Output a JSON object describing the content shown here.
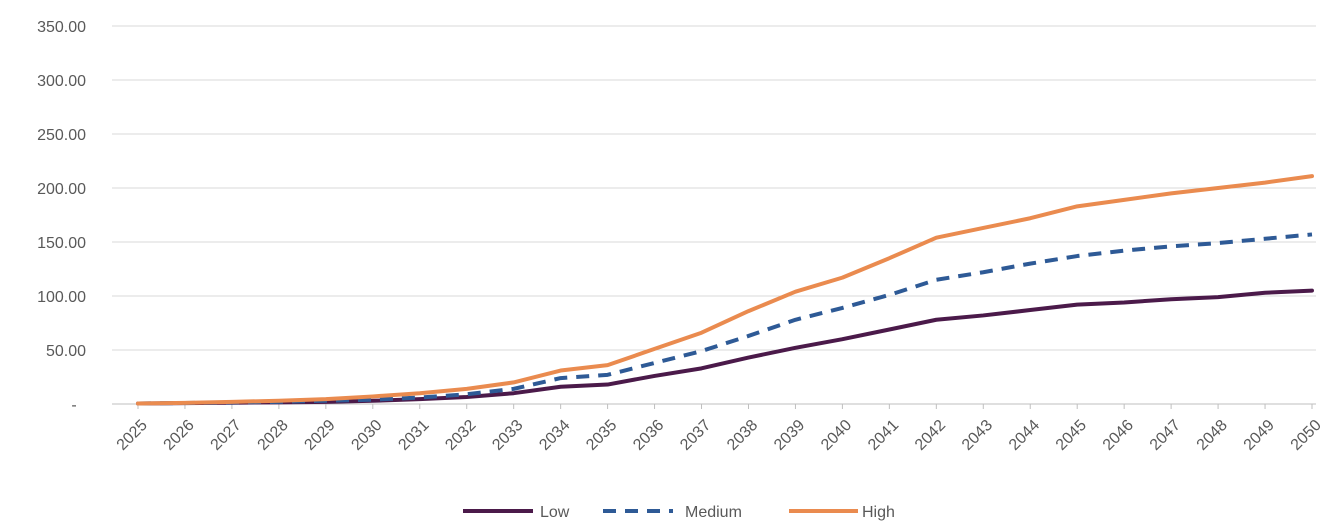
{
  "chart_data": {
    "type": "line",
    "title": "",
    "xlabel": "",
    "ylabel": "",
    "x": [
      "2025",
      "2026",
      "2027",
      "2028",
      "2029",
      "2030",
      "2031",
      "2032",
      "2033",
      "2034",
      "2035",
      "2036",
      "2037",
      "2038",
      "2039",
      "2040",
      "2041",
      "2042",
      "2043",
      "2044",
      "2045",
      "2046",
      "2047",
      "2048",
      "2049",
      "2050"
    ],
    "ylim": [
      0,
      350
    ],
    "yticks": [
      0,
      50,
      100,
      150,
      200,
      250,
      300,
      350
    ],
    "ytick_labels": [
      "-",
      "50.00",
      "100.00",
      "150.00",
      "200.00",
      "250.00",
      "300.00",
      "350.00"
    ],
    "grid": true,
    "legend_position": "bottom",
    "series": [
      {
        "name": "Low",
        "color": "#4b1a4a",
        "style": "solid",
        "values": [
          0.5,
          0.8,
          1.2,
          1.5,
          2.0,
          3.0,
          4.5,
          6.5,
          10.0,
          16.0,
          18.0,
          26.0,
          33.0,
          43.0,
          52.0,
          60.0,
          69.0,
          78.0,
          82.0,
          87.0,
          92.0,
          94.0,
          97.0,
          99.0,
          103.0,
          105.0
        ]
      },
      {
        "name": "Medium",
        "color": "#2e5a96",
        "style": "dashed",
        "values": [
          0.5,
          0.9,
          1.5,
          2.0,
          3.0,
          4.0,
          6.0,
          9.0,
          14.0,
          24.0,
          27.0,
          38.0,
          49.0,
          63.0,
          78.0,
          89.0,
          101.0,
          115.0,
          122.0,
          130.0,
          137.0,
          142.0,
          146.0,
          149.0,
          153.0,
          157.0
        ]
      },
      {
        "name": "High",
        "color": "#ea8b4f",
        "style": "solid",
        "values": [
          0.5,
          1.0,
          2.0,
          3.0,
          4.5,
          7.0,
          10.0,
          14.0,
          20.0,
          31.0,
          36.0,
          51.0,
          66.0,
          86.0,
          104.0,
          117.0,
          135.0,
          154.0,
          163.0,
          172.0,
          183.0,
          189.0,
          195.0,
          200.0,
          205.0,
          211.0
        ]
      }
    ]
  }
}
